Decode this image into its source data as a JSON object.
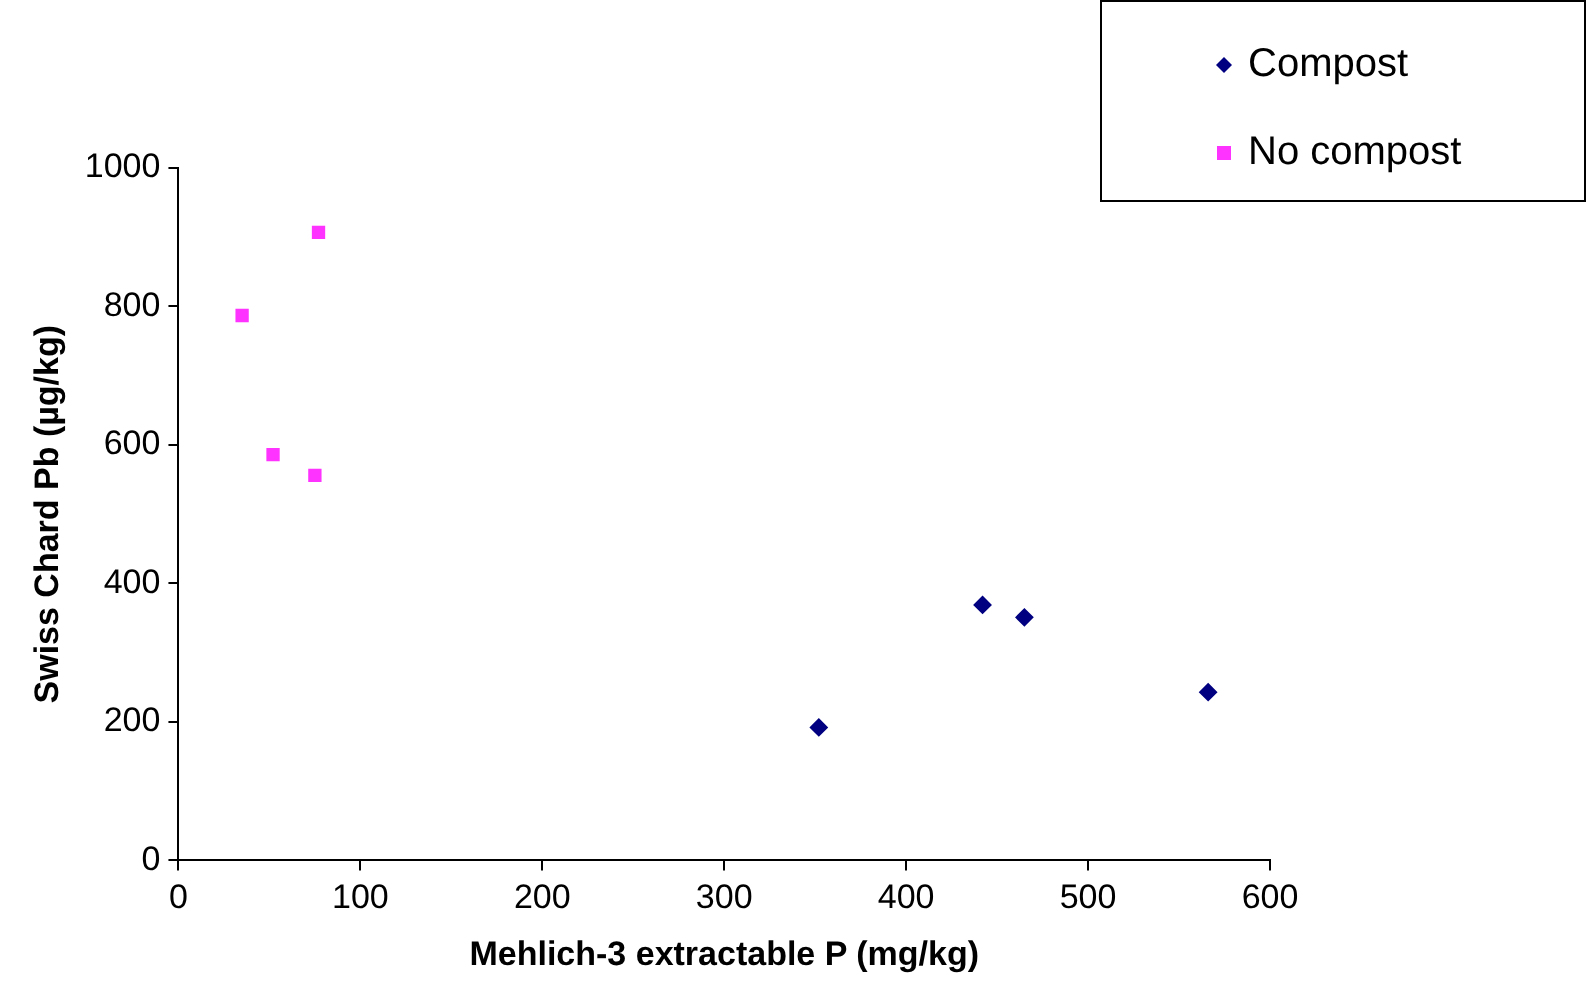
{
  "chart_data": {
    "type": "scatter",
    "xlabel": "Mehlich-3 extractable P (mg/kg)",
    "ylabel": "Swiss Chard Pb (µg/kg)",
    "xlim": [
      0,
      600
    ],
    "xticks": [
      0,
      100,
      200,
      300,
      400,
      500,
      600
    ],
    "ylim": [
      0,
      1000
    ],
    "yticks": [
      0,
      200,
      400,
      600,
      800,
      1000
    ],
    "grid": false,
    "legend": "top right",
    "series": [
      {
        "name": "Compost",
        "color": "#000080",
        "marker": "diamond",
        "x": [
          352,
          442,
          465,
          566
        ],
        "values": [
          192,
          369,
          351,
          243
        ]
      },
      {
        "name": "No compost",
        "color": "#ff33ff",
        "marker": "square",
        "x": [
          35,
          52,
          75,
          77
        ],
        "values": [
          787,
          586,
          556,
          907
        ]
      }
    ]
  }
}
